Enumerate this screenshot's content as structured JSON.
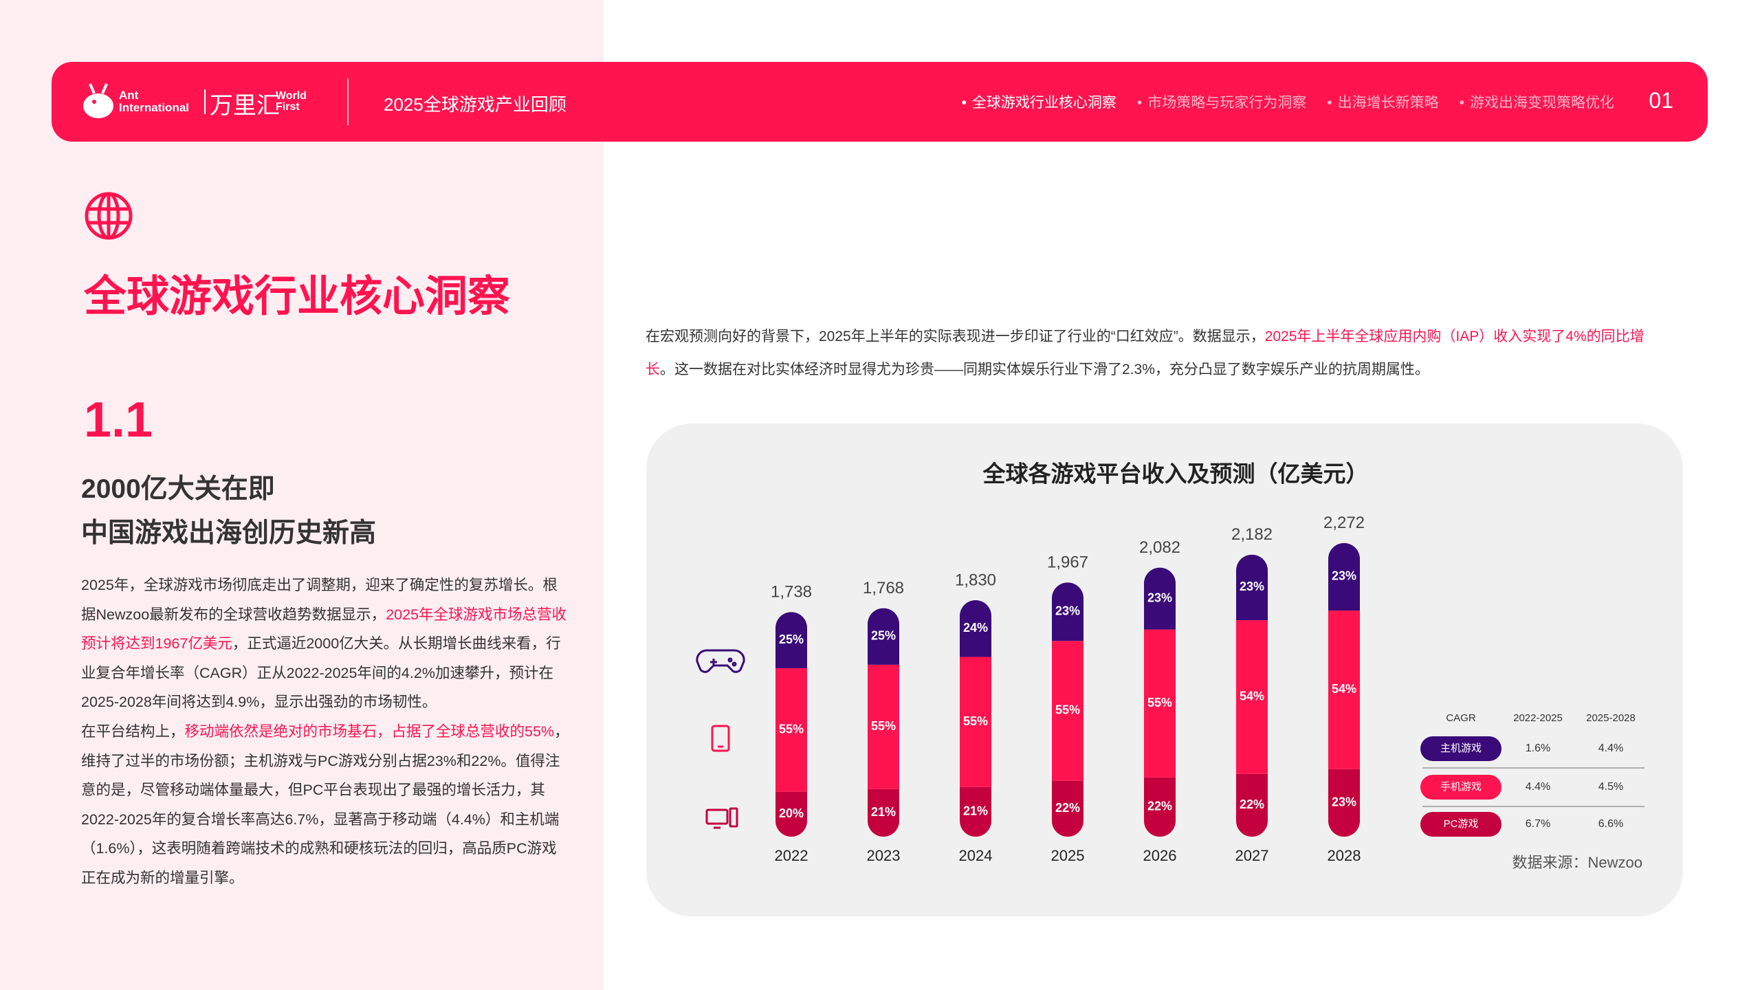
{
  "header": {
    "logo": {
      "brand": "Ant",
      "brand_line2": "International",
      "cn": "万里汇",
      "en_line1": "World",
      "en_line2": "First"
    },
    "title": "2025全球游戏产业回顾",
    "nav": [
      "全球游戏行业核心洞察",
      "市场策略与玩家行为洞察",
      "出海增长新策略",
      "游戏出海变现策略优化"
    ],
    "page_number": "01"
  },
  "section": {
    "title": "全球游戏行业核心洞察",
    "number": "1.1",
    "subtitle": [
      "2000亿大关在即",
      "中国游戏出海创历史新高"
    ],
    "body": [
      [
        {
          "text": "2025年，全球游戏市场彻底走出了调整期，迎来了确定性的复苏增长。根据Newzoo最新发布的全球营收趋势数据显示，"
        },
        {
          "text": "2025年全球游戏市场总营收预计将达到1967亿美元",
          "highlight": true
        },
        {
          "text": "，正式逼近2000亿大关。从长期增长曲线来看，行业复合年增长率（CAGR）正从2022-2025年间的4.2%加速攀升，预计在2025-2028年间将达到4.9%，显示出强劲的市场韧性。"
        }
      ],
      [
        {
          "text": "在平台结构上，"
        },
        {
          "text": "移动端依然是绝对的市场基石，占据了全球总营收的55%",
          "highlight": true
        },
        {
          "text": "，维持了过半的市场份额；主机游戏与PC游戏分别占据23%和22%。值得注意的是，尽管移动端体量最大，但PC平台表现出了最强的增长活力，其2022-2025年的复合增长率高达6.7%，显著高于移动端（4.4%）和主机端（1.6%），这表明随着跨端技术的成熟和硬核玩法的回归，高品质PC游戏正在成为新的增量引擎。"
        }
      ]
    ]
  },
  "intro": [
    [
      {
        "text": "在宏观预测向好的背景下，2025年上半年的实际表现进一步印证了行业的“口红效应”。数据显示，"
      },
      {
        "text": "2025年上半年全球应用内购（IAP）收入实现了4%的同比增长",
        "highlight": true
      },
      {
        "text": "。这一数据在对比实体经济时显得尤为珍贵——同期实体娱乐行业下滑了2.3%，充分凸显了数字娱乐产业的抗周期属性。"
      }
    ]
  ],
  "chart_data": {
    "type": "stacked-bar",
    "title": "全球各游戏平台收入及预测（亿美元）",
    "categories": [
      "2022",
      "2023",
      "2024",
      "2025",
      "2026",
      "2027",
      "2028"
    ],
    "totals": {
      "values": [
        1738,
        1768,
        1830,
        1967,
        2082,
        2182,
        2272
      ],
      "value_labels": [
        "1,738",
        "1,768",
        "1,830",
        "1,967",
        "2,082",
        "2,182",
        "2,272"
      ]
    },
    "series": [
      {
        "name": "PC游戏",
        "color": "#c4003e",
        "values": [
          20,
          21,
          21,
          22,
          22,
          22,
          23
        ],
        "value_labels": [
          "20%",
          "21%",
          "21%",
          "22%",
          "22%",
          "22%",
          "23%"
        ]
      },
      {
        "name": "手机游戏",
        "color": "#ff1450",
        "values": [
          55,
          55,
          55,
          55,
          55,
          54,
          54
        ],
        "value_labels": [
          "55%",
          "55%",
          "55%",
          "55%",
          "55%",
          "54%",
          "54%"
        ]
      },
      {
        "name": "主机游戏",
        "color": "#3a0a78",
        "values": [
          25,
          25,
          24,
          23,
          23,
          23,
          23
        ],
        "value_labels": [
          "25%",
          "25%",
          "24%",
          "23%",
          "23%",
          "23%",
          "23%"
        ]
      }
    ],
    "source": "数据来源：Newzoo"
  },
  "cagr_table": {
    "header": [
      "CAGR",
      "2022-2025",
      "2025-2028"
    ],
    "rows": [
      [
        "1.6%",
        "4.4%"
      ],
      [
        "4.4%",
        "4.5%"
      ],
      [
        "6.7%",
        "6.6%"
      ]
    ]
  }
}
